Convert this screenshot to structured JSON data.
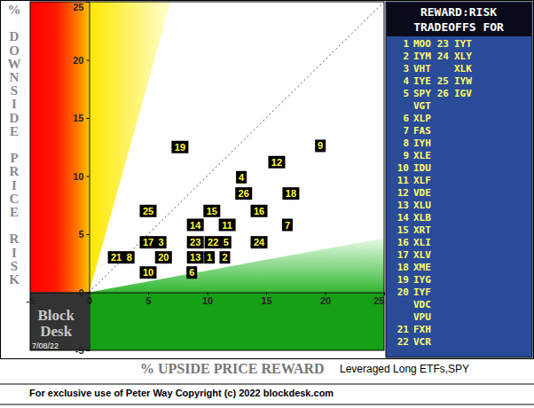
{
  "chart_data": {
    "type": "scatter",
    "x_label": "% UPSIDE PRICE REWARD",
    "y_label": "% DOWNSIDE PRICE RISK",
    "subtitle": "Leveraged Long ETFs,SPY",
    "labels": [
      19,
      9,
      12,
      4,
      26,
      18,
      25,
      15,
      16,
      14,
      11,
      7,
      17,
      3,
      23,
      22,
      5,
      24,
      21,
      8,
      20,
      13,
      1,
      2,
      10,
      6
    ],
    "x": [
      7.7,
      19.6,
      15.9,
      12.9,
      13.1,
      17.1,
      5.0,
      10.4,
      14.4,
      9.0,
      11.7,
      16.8,
      5.0,
      6.1,
      9.0,
      10.5,
      11.6,
      14.4,
      2.3,
      3.4,
      6.3,
      9.0,
      10.2,
      11.5,
      5.0,
      8.7
    ],
    "values": [
      12.5,
      12.6,
      11.2,
      9.9,
      8.5,
      8.5,
      7.0,
      7.0,
      7.0,
      5.8,
      5.8,
      5.8,
      4.3,
      4.3,
      4.3,
      4.3,
      4.3,
      4.3,
      3.0,
      3.0,
      3.0,
      3.0,
      3.0,
      3.0,
      1.7,
      1.7
    ],
    "color": "#000000",
    "xlim": [
      -5,
      25
    ],
    "ylim": [
      -5,
      25
    ],
    "xticks": [
      -5,
      0,
      5,
      10,
      15,
      20,
      25
    ],
    "yticks": [
      -5,
      0,
      5,
      10,
      15,
      20,
      25
    ],
    "grid": false
  },
  "ranking": {
    "title_lines": [
      "REWARD:RISK",
      "TRADEOFFS FOR"
    ],
    "columns": [
      [
        {
          "rank": 1,
          "ticker": "MOO"
        },
        {
          "rank": 2,
          "ticker": "IYM"
        },
        {
          "rank": 3,
          "ticker": "VHT"
        },
        {
          "rank": 4,
          "ticker": "IYE"
        },
        {
          "rank": 5,
          "ticker": "SPY"
        },
        {
          "rank": null,
          "ticker": "VGT"
        },
        {
          "rank": 6,
          "ticker": "XLP"
        },
        {
          "rank": 7,
          "ticker": "FAS"
        },
        {
          "rank": 8,
          "ticker": "IYH"
        },
        {
          "rank": 9,
          "ticker": "XLE"
        },
        {
          "rank": 10,
          "ticker": "IDU"
        },
        {
          "rank": 11,
          "ticker": "XLF"
        },
        {
          "rank": 12,
          "ticker": "VDE"
        },
        {
          "rank": 13,
          "ticker": "XLU"
        },
        {
          "rank": 14,
          "ticker": "XLB"
        },
        {
          "rank": 15,
          "ticker": "XRT"
        },
        {
          "rank": 16,
          "ticker": "XLI"
        },
        {
          "rank": 17,
          "ticker": "XLV"
        },
        {
          "rank": 18,
          "ticker": "XME"
        },
        {
          "rank": 19,
          "ticker": "IYG"
        },
        {
          "rank": 20,
          "ticker": "IYF"
        },
        {
          "rank": null,
          "ticker": "VDC"
        },
        {
          "rank": null,
          "ticker": "VPU"
        },
        {
          "rank": 21,
          "ticker": "FXH"
        },
        {
          "rank": 22,
          "ticker": "VCR"
        }
      ],
      [
        {
          "rank": 23,
          "ticker": "IYT"
        },
        {
          "rank": 24,
          "ticker": "XLY"
        },
        {
          "rank": null,
          "ticker": "XLK"
        },
        {
          "rank": 25,
          "ticker": "IYW"
        },
        {
          "rank": 26,
          "ticker": "IGV"
        }
      ]
    ]
  },
  "branding": {
    "name_lines": [
      "Block",
      "Desk"
    ],
    "date": "7/08/22",
    "footer": "For exclusive use of Peter Way Copyright (c) 2022 blockdesk.com"
  }
}
